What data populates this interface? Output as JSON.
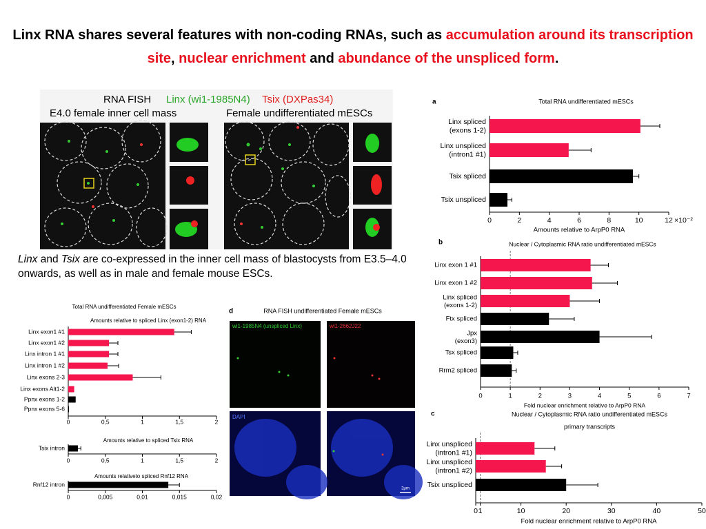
{
  "title": [
    "Linx RNA shares several features with non-coding RNAs, such as ",
    "accumulation around its transcription site",
    ", ",
    "nuclear enrichment",
    " and ",
    "abundance of the unspliced form",
    "."
  ],
  "caption": [
    "Linx",
    " and ",
    "Tsix",
    " are co-expressed in the inner cell mass of blastocysts from E3.5–4.0 onwards, as well as in male and female mouse ESCs."
  ],
  "fish_figure": {
    "header": [
      "RNA FISH",
      "Linx (wi1-1985N4)",
      "Tsix (DXPas34)"
    ],
    "left_label": "E4.0 female inner cell mass",
    "right_label": "Female undifferentiated mESCs"
  },
  "panel_d": {
    "panel": "d",
    "title": "RNA FISH undifferentiated Female mESCs",
    "channels": [
      "wi1-1985N4 (unspliced Linx)",
      "wi1-2662J22",
      "DAPI"
    ],
    "scale_bar": "2μm"
  },
  "chart_data": [
    {
      "type": "bar",
      "orientation": "horizontal",
      "panel": "a",
      "title": "Total RNA undifferentiated mESCs",
      "categories": [
        "Linx spliced\n(exons 1-2)",
        "Linx unspliced\n(intron1 #1)",
        "Tsix spliced",
        "Tsix unspliced"
      ],
      "values": [
        10.1,
        5.3,
        9.6,
        1.2
      ],
      "errors": [
        1.3,
        1.5,
        0.4,
        0.3
      ],
      "colors": [
        "#f4164c",
        "#f4164c",
        "#000000",
        "#000000"
      ],
      "xlim": [
        0,
        12
      ],
      "xticks": [
        0,
        2,
        4,
        6,
        8,
        10,
        12
      ],
      "x_scale_label": "×10⁻²",
      "xlabel": "Amounts relative to ArpP0 RNA"
    },
    {
      "type": "bar",
      "orientation": "horizontal",
      "panel": "b",
      "title": "Nuclear / Cytoplasmic RNA ratio undifferentiated mESCs",
      "categories": [
        "Linx exon 1 #1",
        "Linx exon 1 #2",
        "Linx spliced\n(exons 1-2)",
        "Ftx spliced",
        "Jpx\n(exon3)",
        "Tsx spliced",
        "Rrm2 spliced"
      ],
      "values": [
        3.7,
        3.75,
        3.0,
        2.3,
        4.0,
        1.1,
        1.05
      ],
      "errors": [
        0.6,
        0.85,
        1.0,
        0.85,
        1.75,
        0.15,
        0.15
      ],
      "colors": [
        "#f4164c",
        "#f4164c",
        "#f4164c",
        "#000000",
        "#000000",
        "#000000",
        "#000000"
      ],
      "xlim": [
        0,
        7
      ],
      "xticks": [
        0,
        1,
        2,
        3,
        4,
        5,
        6,
        7
      ],
      "reference_line": 1,
      "xlabel": "Fold nuclear enrichment relative to ArpP0 RNA"
    },
    {
      "type": "bar",
      "orientation": "horizontal",
      "panel": "c",
      "title": "Nuclear / Cytoplasmic RNA ratio undifferentiated mESCs",
      "subtitle": "primary transcripts",
      "categories": [
        "Linx unspliced\n(intron1 #1)",
        "Linx unspliced\n(intron1 #2)",
        "Tsix unspliced"
      ],
      "values": [
        13,
        15.5,
        20
      ],
      "errors": [
        4.5,
        3.5,
        7
      ],
      "colors": [
        "#f4164c",
        "#f4164c",
        "#000000"
      ],
      "xlim": [
        0,
        50
      ],
      "xticks": [
        0,
        1,
        10,
        20,
        30,
        40,
        50
      ],
      "reference_line": 1,
      "xlabel": "Fold nuclear enrichment relative to ArpP0 RNA"
    },
    {
      "type": "bar",
      "orientation": "horizontal",
      "title": "Total RNA undifferentiated Female mESCs",
      "subtitle": "Amounts relative to spliced Linx (exon1-2) RNA",
      "categories": [
        "Linx exon1 #1",
        "Linx exon1 #2",
        "Linx intron 1 #1",
        "Linx intron 1 #2",
        "Linx exons 2-3",
        "Linx exons Alt1-2",
        "Ppnx exons 1-2",
        "Ppnx exons 5-6"
      ],
      "values": [
        1.43,
        0.55,
        0.55,
        0.53,
        0.87,
        0.08,
        0.1,
        0.01
      ],
      "errors": [
        0.23,
        0.12,
        0.12,
        0.15,
        0.38,
        null,
        null,
        null
      ],
      "colors": [
        "#f4164c",
        "#f4164c",
        "#f4164c",
        "#f4164c",
        "#f4164c",
        "#f4164c",
        "#000000",
        "#000000"
      ],
      "xlim": [
        0,
        2
      ],
      "xticks": [
        0,
        {
          "value": 0.5,
          "label": "0,5"
        },
        1,
        {
          "value": 1.5,
          "label": "1,5"
        },
        2
      ]
    },
    {
      "type": "bar",
      "orientation": "horizontal",
      "subtitle": "Amounts relative to spliced Tsix RNA",
      "categories": [
        "Tsix intron"
      ],
      "values": [
        0.13
      ],
      "errors": [
        0.04
      ],
      "colors": [
        "#000000"
      ],
      "xlim": [
        0,
        2
      ],
      "xticks": [
        0,
        {
          "value": 0.5,
          "label": "0,5"
        },
        1,
        {
          "value": 1.5,
          "label": "1,5"
        },
        2
      ]
    },
    {
      "type": "bar",
      "orientation": "horizontal",
      "subtitle": "Amounts relativeto spliced Rnf12 RNA",
      "categories": [
        "Rnf12 intron"
      ],
      "values": [
        0.0135
      ],
      "errors": [
        0.0015
      ],
      "colors": [
        "#000000"
      ],
      "xlim": [
        0,
        0.02
      ],
      "xticks": [
        0,
        {
          "value": 0.005,
          "label": "0,005"
        },
        {
          "value": 0.01,
          "label": "0,01"
        },
        {
          "value": 0.015,
          "label": "0,015"
        },
        {
          "value": 0.02,
          "label": "0,02"
        }
      ]
    }
  ]
}
